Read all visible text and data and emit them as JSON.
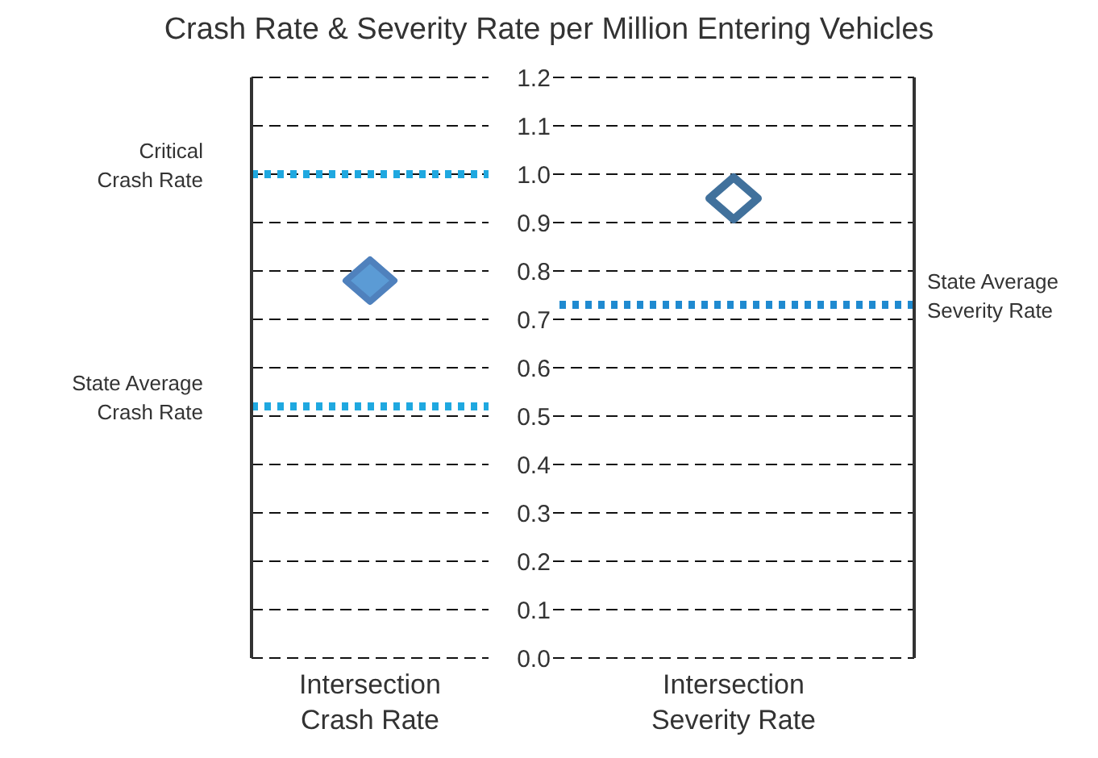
{
  "chart_data": [
    {
      "type": "scatter",
      "title": "Crash Rate & Severity Rate per Million Entering Vehicles",
      "categories": [
        "Intersection Crash Rate"
      ],
      "values": [
        0.78
      ],
      "color": "#4f81bd",
      "marker": "diamond",
      "ylim": [
        0,
        1.2
      ],
      "yticks": [
        {
          "value": 0,
          "label": "0.0"
        },
        0.1,
        0.2,
        0.3,
        0.4,
        0.5,
        0.6,
        0.7,
        0.8,
        0.9,
        {
          "value": 1,
          "label": "1.0"
        },
        1.1,
        1.2
      ],
      "grid": "y",
      "ref_lines": [
        {
          "axis": "y",
          "value": 1.0,
          "label": "Critical Crash Rate",
          "color": "#1fa8e0",
          "line_style": "dotted"
        },
        {
          "axis": "y",
          "value": 0.52,
          "label": "State Average Crash Rate",
          "color": "#1fa8e0",
          "line_style": "dotted"
        }
      ]
    },
    {
      "type": "scatter",
      "categories": [
        "Intersection Severity Rate"
      ],
      "values": [
        0.95
      ],
      "color": "#41719c",
      "marker": "diamond",
      "ylim": [
        0,
        1.2
      ],
      "yticks": [
        0,
        0.1,
        0.2,
        0.3,
        0.4,
        0.5,
        0.6,
        0.7,
        0.8,
        0.9,
        1,
        1.1,
        1.2
      ],
      "grid": "y",
      "tick_labels": "x",
      "ref_lines": [
        {
          "axis": "y",
          "value": 0.73,
          "label": "State Average Severity Rate",
          "color": "#1f8ad0",
          "line_style": "dotted"
        }
      ]
    }
  ]
}
